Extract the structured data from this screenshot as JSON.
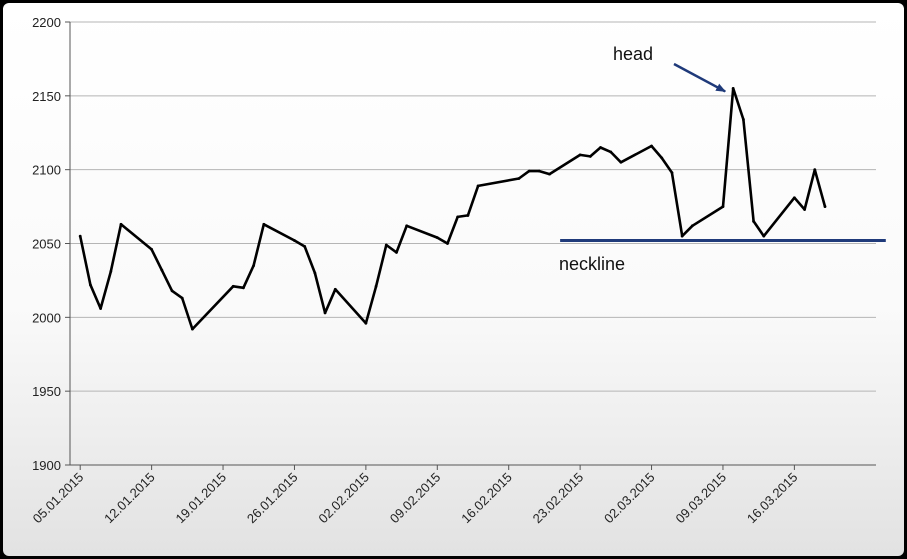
{
  "chart_data": {
    "type": "line",
    "title": "",
    "xlabel": "",
    "ylabel": "",
    "ylim": [
      1900,
      2200
    ],
    "yticks": [
      1900,
      1950,
      2000,
      2050,
      2100,
      2150,
      2200
    ],
    "xlim": [
      "2015-01-04",
      "2015-03-24"
    ],
    "xtick_labels": [
      "05.01.2015",
      "12.01.2015",
      "19.01.2015",
      "26.01.2015",
      "02.02.2015",
      "09.02.2015",
      "16.02.2015",
      "23.02.2015",
      "02.03.2015",
      "09.03.2015",
      "16.03.2015"
    ],
    "xtick_dates": [
      "2015-01-05",
      "2015-01-12",
      "2015-01-19",
      "2015-01-26",
      "2015-02-02",
      "2015-02-09",
      "2015-02-16",
      "2015-02-23",
      "2015-03-02",
      "2015-03-09",
      "2015-03-16"
    ],
    "grid": true,
    "line_color": "#000000",
    "series": [
      {
        "x": [
          "2015-01-05",
          "2015-01-06",
          "2015-01-07",
          "2015-01-08",
          "2015-01-09",
          "2015-01-12",
          "2015-01-13",
          "2015-01-14",
          "2015-01-15",
          "2015-01-16",
          "2015-01-20",
          "2015-01-21",
          "2015-01-22",
          "2015-01-23",
          "2015-01-26",
          "2015-01-27",
          "2015-01-28",
          "2015-01-29",
          "2015-01-30",
          "2015-02-02",
          "2015-02-03",
          "2015-02-04",
          "2015-02-05",
          "2015-02-06",
          "2015-02-09",
          "2015-02-10",
          "2015-02-11",
          "2015-02-12",
          "2015-02-13",
          "2015-02-17",
          "2015-02-18",
          "2015-02-19",
          "2015-02-20",
          "2015-02-23",
          "2015-02-24",
          "2015-02-25",
          "2015-02-26",
          "2015-02-27",
          "2015-03-02",
          "2015-03-03",
          "2015-03-04",
          "2015-03-05",
          "2015-03-06",
          "2015-03-09",
          "2015-03-10",
          "2015-03-11",
          "2015-03-12",
          "2015-03-13",
          "2015-03-16",
          "2015-03-17",
          "2015-03-18",
          "2015-03-19"
        ],
        "values": [
          2055,
          2022,
          2006,
          2031,
          2063,
          2046,
          2032,
          2018,
          2013,
          1992,
          2021,
          2020,
          2035,
          2063,
          2052,
          2048,
          2030,
          2003,
          2019,
          1996,
          2021,
          2049,
          2044,
          2062,
          2054,
          2050,
          2068,
          2069,
          2089,
          2094,
          2099,
          2099,
          2097,
          2110,
          2109,
          2115,
          2112,
          2105,
          2116,
          2108,
          2098,
          2055,
          2062,
          2075,
          2155,
          2134,
          2065,
          2055,
          2081,
          2073,
          2100,
          2075
        ]
      }
    ],
    "annotations": [
      {
        "text": "head",
        "arrow_to": [
          "2015-03-10",
          2155
        ],
        "arrow_color": "#1f3a7a"
      },
      {
        "text": "neckline",
        "line_value": 2052,
        "line_from": "2015-02-23",
        "line_to": "2015-03-23",
        "line_color": "#1f3a7a"
      }
    ]
  }
}
